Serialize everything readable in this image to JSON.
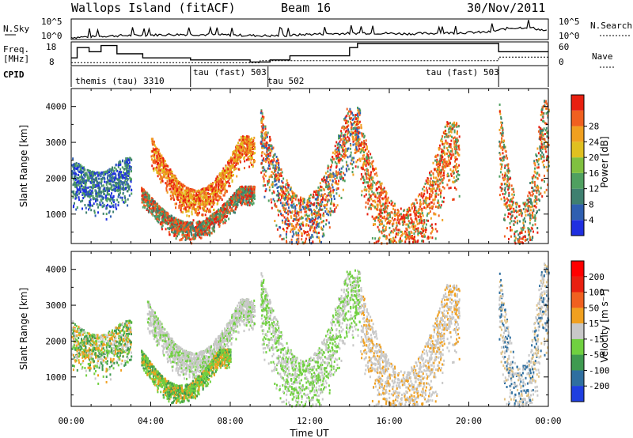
{
  "header": {
    "station": "Wallops Island (fitACF)",
    "beam": "Beam 16",
    "date": "30/Nov/2011"
  },
  "panels": {
    "noise": {
      "left_label": "N.Sky",
      "right_label": "N.Search",
      "left_ticks": [
        "10^5",
        "10^0"
      ],
      "right_ticks": [
        "10^5",
        "10^0"
      ]
    },
    "freq": {
      "left_label_1": "Freq.",
      "left_label_2": "[MHz]",
      "right_label": "Nave",
      "left_ticks": [
        "18",
        "8"
      ],
      "right_ticks": [
        "60",
        "0"
      ]
    },
    "cpid": {
      "label": "CPID",
      "segments": [
        {
          "text": "themis (tau) 3310",
          "start": 0.0
        },
        {
          "text": "tau (fast) 503",
          "start": 6.0
        },
        {
          "text": "tau 502",
          "start": 9.95
        },
        {
          "text": "tau (fast) 503",
          "start": 17.9
        }
      ],
      "boundaries": [
        6.0,
        9.9,
        21.5
      ]
    }
  },
  "axes": {
    "x_label": "Time UT",
    "x_ticks": [
      "00:00",
      "04:00",
      "08:00",
      "12:00",
      "16:00",
      "20:00",
      "00:00"
    ],
    "y_label": "Slant Range [km]",
    "y_ticks": [
      "1000",
      "2000",
      "3000",
      "4000"
    ]
  },
  "colorbars": {
    "power": {
      "label": "Power [dB]",
      "ticks": [
        "4",
        "8",
        "12",
        "16",
        "20",
        "24",
        "28"
      ],
      "colors": [
        "#1f2fe0",
        "#2f5fb0",
        "#3f8070",
        "#4fa060",
        "#80c040",
        "#e0c020",
        "#f0a020",
        "#f06020",
        "#e82010"
      ]
    },
    "velocity": {
      "label": "Velocity [m s⁻¹]",
      "ticks": [
        "200",
        "100",
        "50",
        "15",
        "-15",
        "-50",
        "-100",
        "-200"
      ],
      "colors": [
        "#1f3fe0",
        "#2f6fa0",
        "#3f9a50",
        "#70d040",
        "#c8c8c8",
        "#f0a020",
        "#f06020",
        "#e82010",
        "#ff0000"
      ]
    }
  },
  "chart_data": {
    "type": "heatmap",
    "x_range_hours": [
      0,
      24
    ],
    "y_range_km": [
      180,
      4500
    ],
    "noise_sky": [
      [
        0,
        0.1
      ],
      [
        1,
        0.14
      ],
      [
        2,
        0.18
      ],
      [
        3,
        0.2
      ],
      [
        4,
        0.22
      ],
      [
        5,
        0.24
      ],
      [
        6,
        0.25
      ],
      [
        7,
        0.23
      ],
      [
        8,
        0.22
      ],
      [
        9,
        0.2
      ],
      [
        10,
        0.18
      ],
      [
        11,
        0.2
      ],
      [
        12,
        0.26
      ],
      [
        13,
        0.28
      ],
      [
        14,
        0.3
      ],
      [
        15,
        0.32
      ],
      [
        16,
        0.3
      ],
      [
        17,
        0.28
      ],
      [
        18,
        0.3
      ],
      [
        19,
        0.32
      ],
      [
        20,
        0.34
      ],
      [
        21,
        0.36
      ],
      [
        22,
        0.55
      ],
      [
        23,
        0.6
      ],
      [
        24,
        0.4
      ]
    ],
    "frequency_mhz": [
      [
        0,
        11
      ],
      [
        0.3,
        11
      ],
      [
        0.3,
        16
      ],
      [
        0.9,
        16
      ],
      [
        0.9,
        14
      ],
      [
        1.5,
        14
      ],
      [
        1.5,
        17
      ],
      [
        2.3,
        17
      ],
      [
        2.3,
        13
      ],
      [
        3.6,
        13
      ],
      [
        3.6,
        11
      ],
      [
        6.0,
        11
      ],
      [
        6.0,
        10
      ],
      [
        9.0,
        10
      ],
      [
        9.0,
        9
      ],
      [
        10,
        9
      ],
      [
        10,
        10
      ],
      [
        11,
        10
      ],
      [
        11,
        12
      ],
      [
        14.0,
        12
      ],
      [
        14.0,
        16
      ],
      [
        14.4,
        16
      ],
      [
        14.4,
        18
      ],
      [
        21.5,
        18
      ],
      [
        21.5,
        14
      ],
      [
        24,
        14
      ]
    ],
    "nave": [
      [
        0,
        4
      ],
      [
        9.5,
        4
      ],
      [
        9.5,
        10
      ],
      [
        21.5,
        10
      ],
      [
        21.5,
        20
      ],
      [
        24,
        20
      ]
    ],
    "scatter_regions": [
      {
        "name": "echo-u-upper",
        "t0": 4.0,
        "t1": 9.2,
        "top_start": 3200,
        "top_mid": 1700,
        "thickness": 900,
        "colors": [
          "#f06020",
          "#e82010",
          "#f0a020",
          "#e0c020"
        ]
      },
      {
        "name": "echo-u-lower",
        "t0": 3.5,
        "t1": 9.2,
        "top_start": 1800,
        "top_mid": 800,
        "thickness": 600,
        "colors": [
          "#e82010",
          "#f06020",
          "#4fa060",
          "#3f8070"
        ]
      },
      {
        "name": "echo-early",
        "t0": 0.0,
        "t1": 3.0,
        "top_start": 2600,
        "top_mid": 2200,
        "thickness": 1400,
        "colors": [
          "#2f5fb0",
          "#3f8070",
          "#4fa060",
          "#1f2fe0"
        ]
      },
      {
        "name": "echo-stripes",
        "t0": 9.5,
        "t1": 14.5,
        "top_start": 4000,
        "top_mid": 1500,
        "thickness": 2200,
        "colors": [
          "#e82010",
          "#f06020",
          "#f0a020",
          "#2f5fb0",
          "#4fa060"
        ]
      },
      {
        "name": "echo-sparse",
        "t0": 14.5,
        "t1": 19.5,
        "top_start": 3600,
        "top_mid": 1200,
        "thickness": 2400,
        "colors": [
          "#e82010",
          "#f06020",
          "#f0a020",
          "#4fa060"
        ]
      },
      {
        "name": "echo-late",
        "t0": 21.5,
        "t1": 24.0,
        "top_start": 4200,
        "top_mid": 1300,
        "thickness": 2900,
        "colors": [
          "#e82010",
          "#f06020",
          "#f0a020",
          "#4fa060",
          "#3f8070"
        ]
      }
    ],
    "velocity_regions": [
      {
        "name": "vel-u",
        "t0": 3.8,
        "t1": 9.2,
        "colors": [
          "#c8c8c8",
          "#c8c8c8",
          "#70d040",
          "#c8c8c8"
        ]
      },
      {
        "name": "vel-lower",
        "t0": 3.5,
        "t1": 8.0,
        "colors": [
          "#70d040",
          "#3f9a50",
          "#70d040",
          "#f0a020"
        ]
      },
      {
        "name": "vel-early",
        "t0": 0.0,
        "t1": 3.0,
        "colors": [
          "#c8c8c8",
          "#70d040",
          "#3f9a50",
          "#f0a020"
        ]
      },
      {
        "name": "vel-stripes",
        "t0": 9.5,
        "t1": 14.5,
        "colors": [
          "#c8c8c8",
          "#70d040",
          "#70d040",
          "#c8c8c8"
        ]
      },
      {
        "name": "vel-sparse",
        "t0": 14.5,
        "t1": 19.5,
        "colors": [
          "#c8c8c8",
          "#c8c8c8",
          "#f0a020"
        ]
      },
      {
        "name": "vel-late",
        "t0": 21.5,
        "t1": 24.0,
        "colors": [
          "#c8c8c8",
          "#e0c080",
          "#2f6fa0",
          "#c8c8c8"
        ]
      }
    ]
  }
}
